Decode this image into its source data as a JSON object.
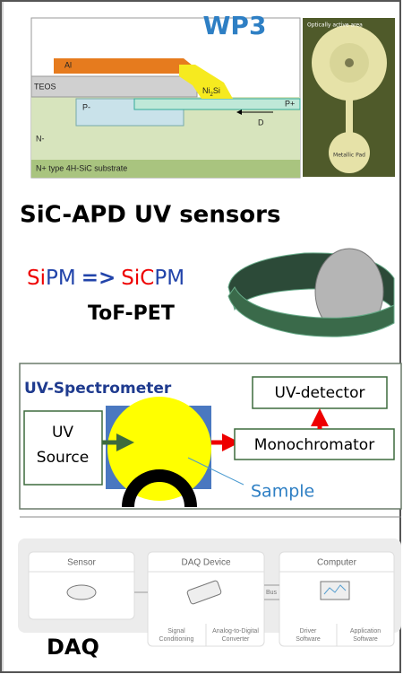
{
  "header": {
    "title": "WP3"
  },
  "cross_section": {
    "layers": {
      "al": "Al",
      "teos": "TEOS",
      "nisi_a": "Ni",
      "nisi_sub": "2",
      "nisi_b": "Si",
      "p_plus": "P+",
      "p_minus": "P-",
      "d": "D",
      "n_minus": "N-",
      "substrate": "N+ type 4H-SiC substrate"
    }
  },
  "photo": {
    "active": "Optically active area",
    "pad": "Metallic Pad"
  },
  "sensors": {
    "title": "SiC-APD UV sensors",
    "sipm": {
      "a1": "Si",
      "a2": "PM",
      "arrow": "=>",
      "b1": "SiC",
      "b2": "PM"
    },
    "pet": "ToF-PET"
  },
  "spectrometer": {
    "title": "UV-Spectrometer",
    "detector": "UV-detector",
    "source": [
      "UV",
      "Source"
    ],
    "mono": "Monochromator",
    "sample": "Sample"
  },
  "daq": {
    "title": "DAQ",
    "sensor": "Sensor",
    "device": "DAQ Device",
    "computer": "Computer",
    "bus": "Bus",
    "signal": [
      "Signal",
      "Conditioning"
    ],
    "adc": [
      "Analog-to-Digital",
      "Converter"
    ],
    "driver": [
      "Driver",
      "Software"
    ],
    "app": [
      "Application",
      "Software"
    ]
  }
}
